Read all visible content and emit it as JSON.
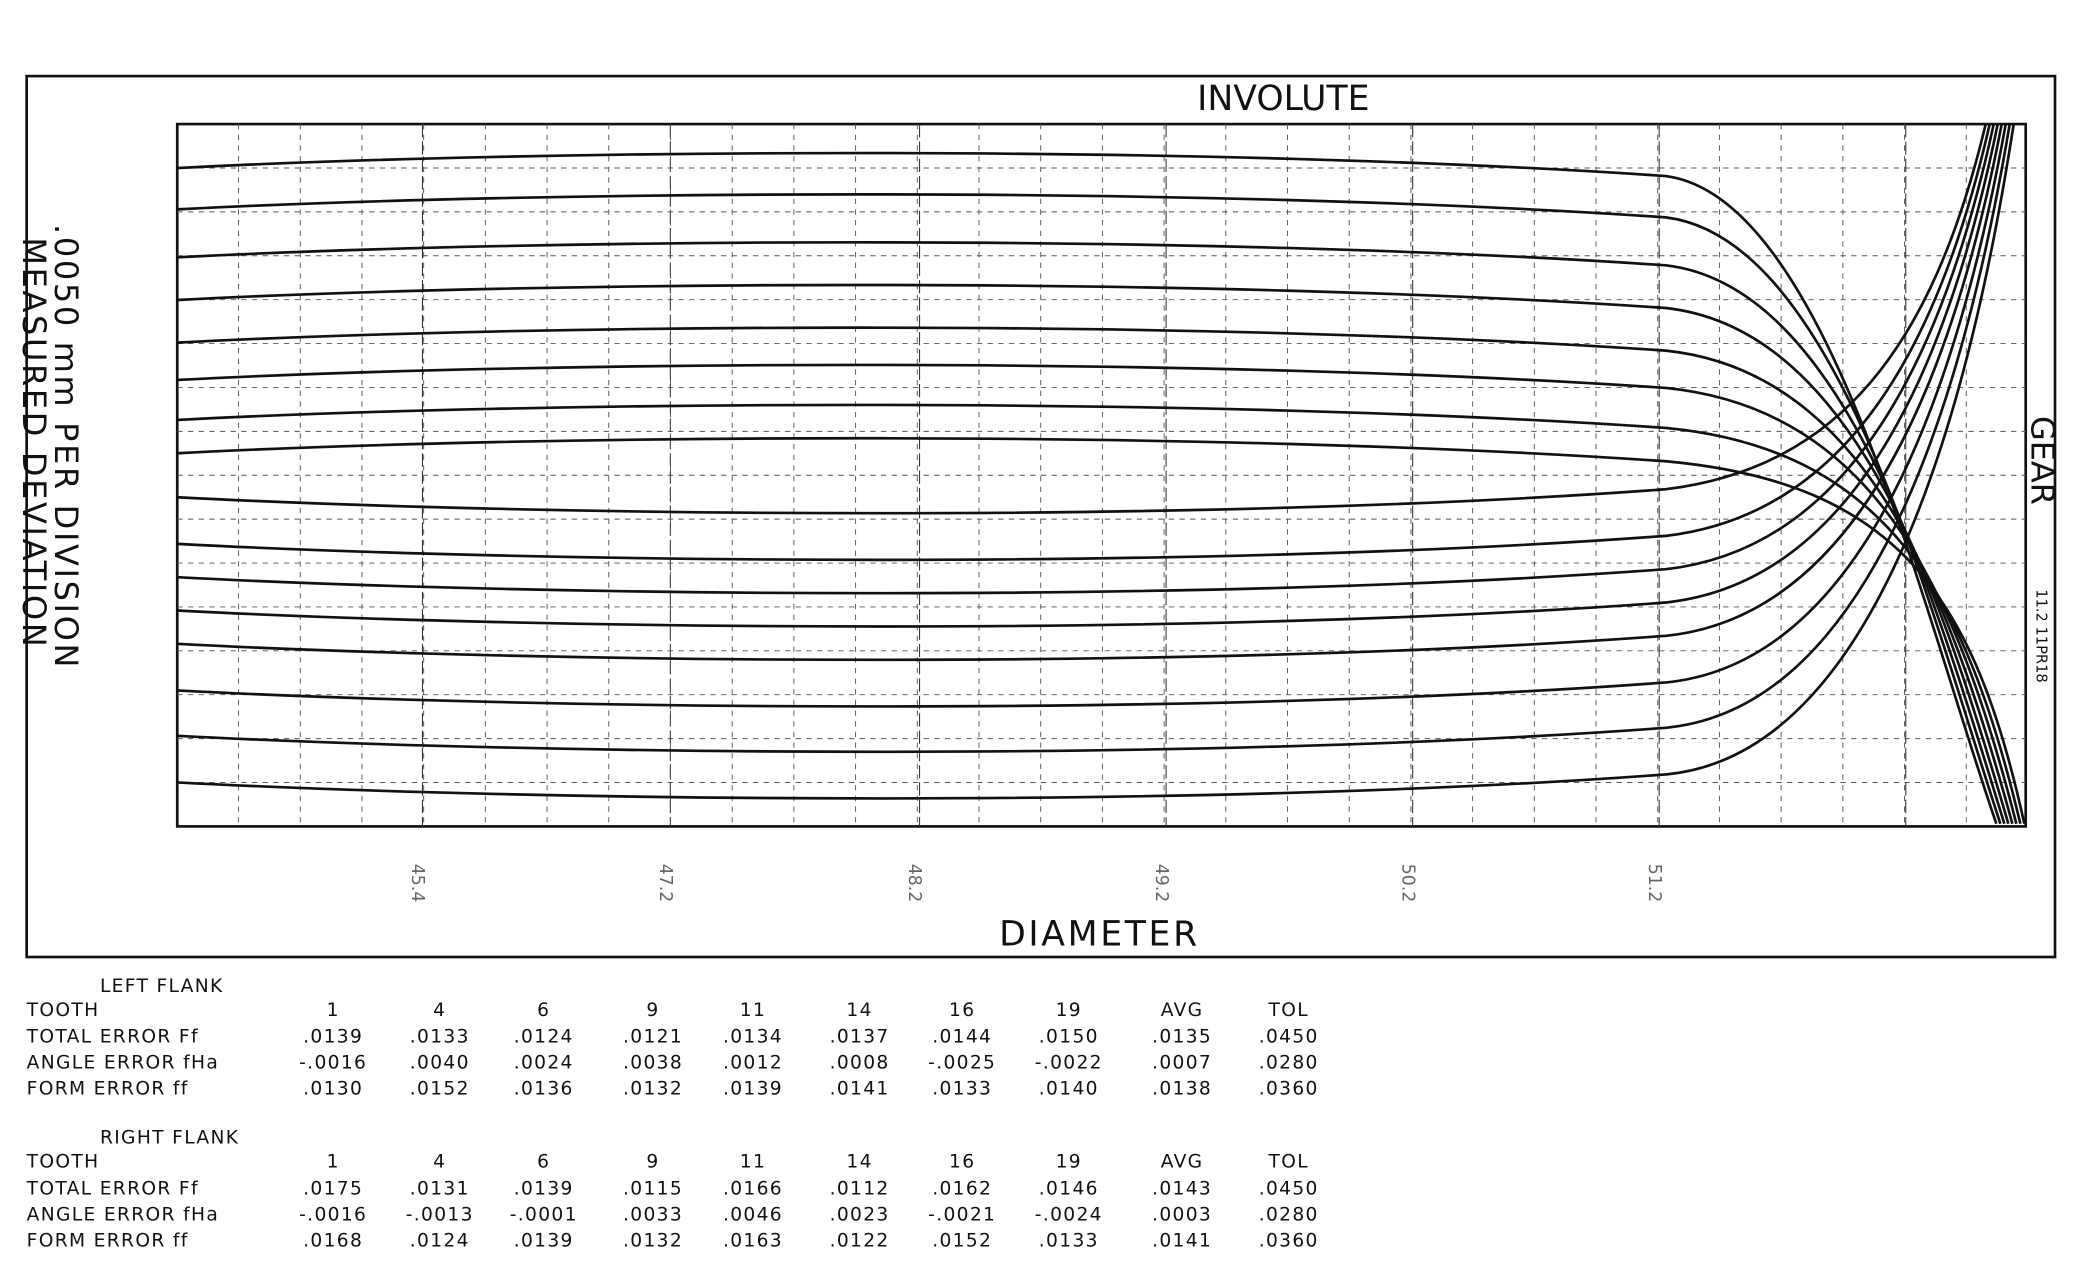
{
  "header": {
    "title": "INVOLUTE",
    "side_label": "GEAR",
    "side_code": "11.2 11PR18"
  },
  "axes": {
    "y_label_1": ".0050 mm PER DIVISION",
    "y_label_2": "MEASURED DEVIATION",
    "x_label": "DIAMETER",
    "x_ticks": [
      "45.4",
      "47.2",
      "48.2",
      "49.2",
      "50.2",
      "51.2"
    ]
  },
  "left_flank": {
    "title": "LEFT FLANK",
    "header": [
      "TOOTH",
      "1",
      "4",
      "6",
      "9",
      "11",
      "14",
      "16",
      "19",
      "AVG",
      "TOL"
    ],
    "rows": [
      [
        "TOTAL ERROR Ff",
        ".0139",
        ".0133",
        ".0124",
        ".0121",
        ".0134",
        ".0137",
        ".0144",
        ".0150",
        ".0135",
        ".0450"
      ],
      [
        "ANGLE ERROR fHa",
        "-.0016",
        ".0040",
        ".0024",
        ".0038",
        ".0012",
        ".0008",
        "-.0025",
        "-.0022",
        ".0007",
        ".0280"
      ],
      [
        "FORM ERROR ff",
        ".0130",
        ".0152",
        ".0136",
        ".0132",
        ".0139",
        ".0141",
        ".0133",
        ".0140",
        ".0138",
        ".0360"
      ]
    ]
  },
  "right_flank": {
    "title": "RIGHT FLANK",
    "header": [
      "TOOTH",
      "1",
      "4",
      "6",
      "9",
      "11",
      "14",
      "16",
      "19",
      "AVG",
      "TOL"
    ],
    "rows": [
      [
        "TOTAL ERROR Ff",
        ".0175",
        ".0131",
        ".0139",
        ".0115",
        ".0166",
        ".0112",
        ".0162",
        ".0146",
        ".0143",
        ".0450"
      ],
      [
        "ANGLE ERROR fHa",
        "-.0016",
        "-.0013",
        "-.0001",
        ".0033",
        ".0046",
        ".0023",
        "-.0021",
        "-.0024",
        ".0003",
        ".0280"
      ],
      [
        "FORM ERROR ff",
        ".0168",
        ".0124",
        ".0139",
        ".0132",
        ".0163",
        ".0122",
        ".0152",
        ".0133",
        ".0141",
        ".0360"
      ]
    ]
  }
}
